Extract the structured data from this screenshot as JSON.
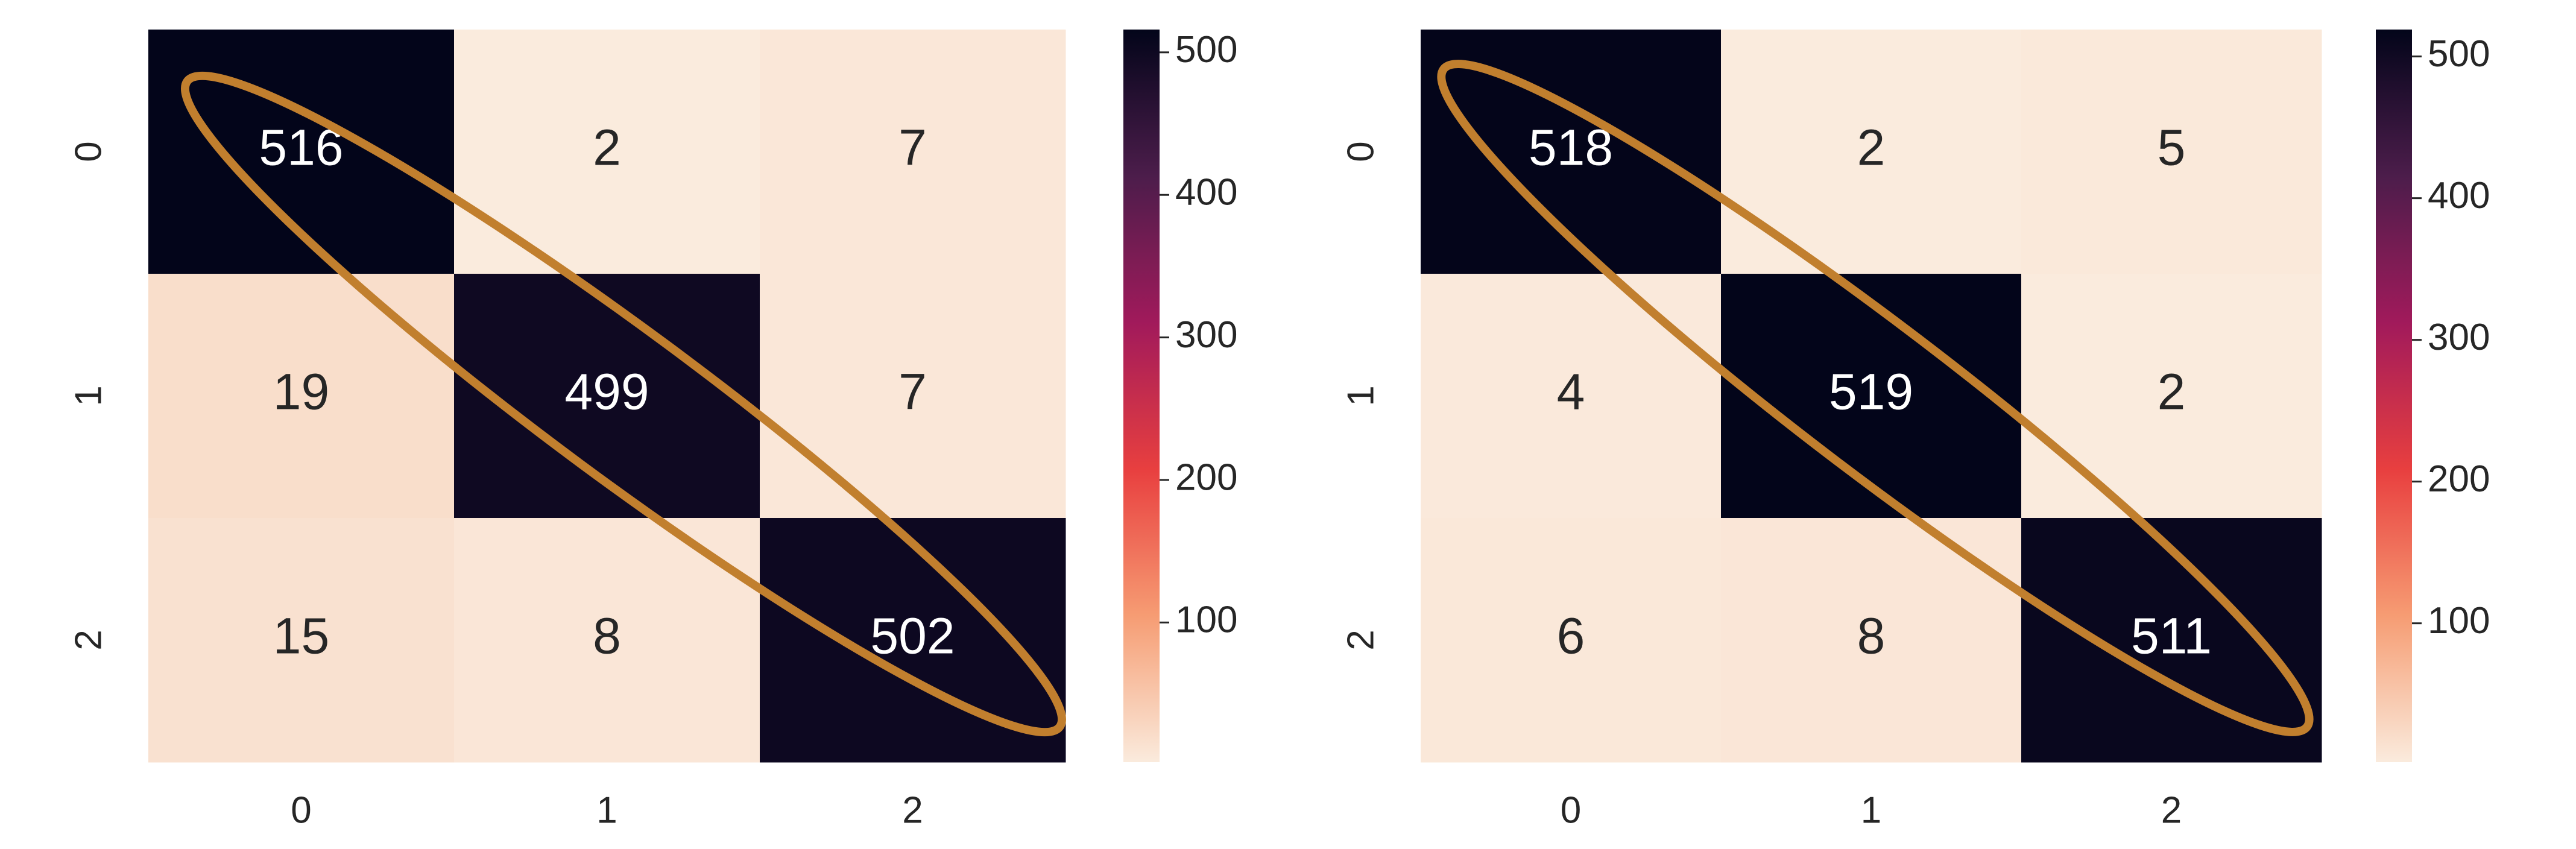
{
  "chart_data": [
    {
      "type": "heatmap",
      "x_categories": [
        "0",
        "1",
        "2"
      ],
      "y_categories": [
        "0",
        "1",
        "2"
      ],
      "z": [
        [
          516,
          2,
          7
        ],
        [
          19,
          499,
          7
        ],
        [
          15,
          8,
          502
        ]
      ],
      "colormap": "rocket",
      "zlim": [
        2,
        516
      ],
      "colorbar_ticks": [
        100,
        200,
        300,
        400,
        500
      ]
    },
    {
      "type": "heatmap",
      "x_categories": [
        "0",
        "1",
        "2"
      ],
      "y_categories": [
        "0",
        "1",
        "2"
      ],
      "z": [
        [
          518,
          2,
          5
        ],
        [
          4,
          519,
          2
        ],
        [
          6,
          8,
          511
        ]
      ],
      "colormap": "rocket",
      "zlim": [
        2,
        519
      ],
      "colorbar_ticks": [
        100,
        200,
        300,
        400,
        500
      ]
    }
  ]
}
